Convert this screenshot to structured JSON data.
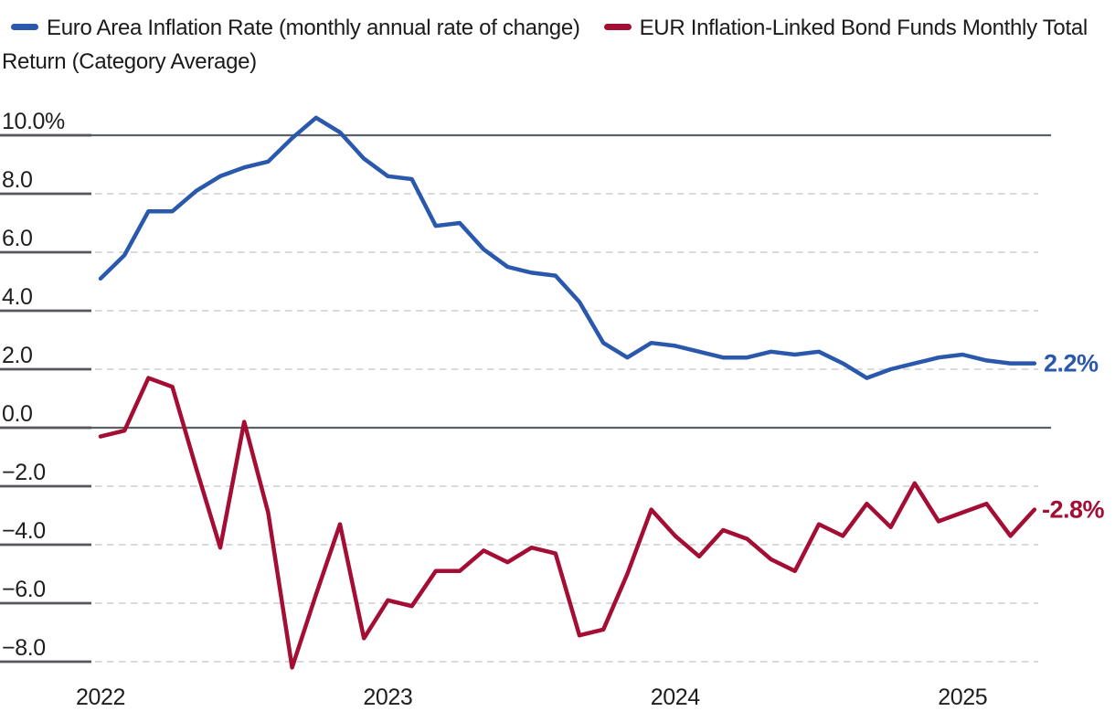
{
  "legend": {
    "series": [
      {
        "name": "Euro Area Inflation Rate (monthly annual rate of change)",
        "color": "#2A58AD"
      },
      {
        "name": "EUR Inflation-Linked Bond Funds Monthly Total Return (Category Average)",
        "color": "#A40E35"
      }
    ]
  },
  "chart_data": {
    "type": "line",
    "x": [
      "Jan 2022",
      "Feb 2022",
      "Mar 2022",
      "Apr 2022",
      "May 2022",
      "Jun 2022",
      "Jul 2022",
      "Aug 2022",
      "Sep 2022",
      "Oct 2022",
      "Nov 2022",
      "Dec 2022",
      "Jan 2023",
      "Feb 2023",
      "Mar 2023",
      "Apr 2023",
      "May 2023",
      "Jun 2023",
      "Jul 2023",
      "Aug 2023",
      "Sep 2023",
      "Oct 2023",
      "Nov 2023",
      "Dec 2023",
      "Jan 2024",
      "Feb 2024",
      "Mar 2024",
      "Apr 2024",
      "May 2024",
      "Jun 2024",
      "Jul 2024",
      "Aug 2024",
      "Sep 2024",
      "Oct 2024",
      "Nov 2024",
      "Dec 2024",
      "Jan 2025",
      "Feb 2025",
      "Mar 2025",
      "Apr 2025"
    ],
    "series": [
      {
        "name": "Euro Area Inflation Rate (monthly annual rate of change)",
        "color": "#2A58AD",
        "end_label": "2.2%",
        "values": [
          5.1,
          5.9,
          7.4,
          7.4,
          8.1,
          8.6,
          8.9,
          9.1,
          9.9,
          10.6,
          10.1,
          9.2,
          8.6,
          8.5,
          6.9,
          7.0,
          6.1,
          5.5,
          5.3,
          5.2,
          4.3,
          2.9,
          2.4,
          2.9,
          2.8,
          2.6,
          2.4,
          2.4,
          2.6,
          2.5,
          2.6,
          2.2,
          1.7,
          2.0,
          2.2,
          2.4,
          2.5,
          2.3,
          2.2,
          2.2
        ]
      },
      {
        "name": "EUR Inflation-Linked Bond Funds Monthly Total Return (Category Average)",
        "color": "#A40E35",
        "end_label": "-2.8%",
        "values": [
          -0.3,
          -0.1,
          1.7,
          1.4,
          -1.4,
          -4.1,
          0.2,
          -2.9,
          -8.2,
          -5.7,
          -3.3,
          -7.2,
          -5.9,
          -6.1,
          -4.9,
          -4.9,
          -4.2,
          -4.6,
          -4.1,
          -4.3,
          -7.1,
          -6.9,
          -5.0,
          -2.8,
          -3.7,
          -4.4,
          -3.5,
          -3.8,
          -4.5,
          -4.9,
          -3.3,
          -3.7,
          -2.6,
          -3.4,
          -1.9,
          -3.2,
          -2.9,
          -2.6,
          -3.7,
          -2.8
        ]
      }
    ],
    "y_axis": {
      "unit": "%",
      "ticks": [
        {
          "label": "10.0%",
          "value": 10
        },
        {
          "label": "8.0",
          "value": 8
        },
        {
          "label": "6.0",
          "value": 6
        },
        {
          "label": "4.0",
          "value": 4
        },
        {
          "label": "2.0",
          "value": 2
        },
        {
          "label": "0.0",
          "value": 0
        },
        {
          "label": "−2.0",
          "value": -2
        },
        {
          "label": "−4.0",
          "value": -4
        },
        {
          "label": "−6.0",
          "value": -6
        },
        {
          "label": "−8.0",
          "value": -8
        }
      ],
      "solid_values": [
        10,
        0
      ],
      "ylim": [
        -8.7,
        11
      ]
    },
    "x_axis": {
      "ticks": [
        {
          "label": "2022",
          "month_index": 0
        },
        {
          "label": "2023",
          "month_index": 12
        },
        {
          "label": "2024",
          "month_index": 24
        },
        {
          "label": "2025",
          "month_index": 36
        }
      ]
    },
    "grid": "horizontal; dashed light gray, solid gray at 0.0 and 10.0",
    "legend_position": "top"
  },
  "colors": {
    "series_blue": "#2A58AD",
    "series_red": "#A40E35",
    "grid_dashed": "#DADADA",
    "grid_solid": "#5D6064",
    "tick_stub": "#55575A",
    "text": "#1E1E1E",
    "background": "#FFFFFF"
  }
}
